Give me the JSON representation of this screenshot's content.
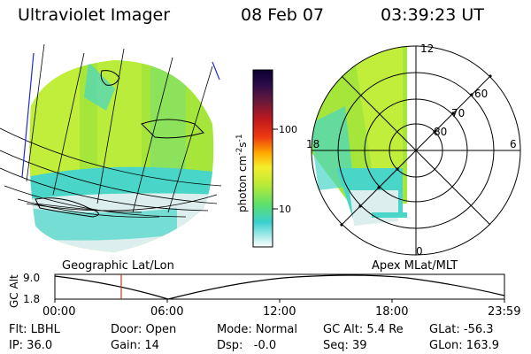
{
  "header": {
    "instrument": "Ultraviolet Imager",
    "date": "08 Feb 07",
    "time": "03:39:23 UT"
  },
  "colorbar": {
    "unit_label": "photon cm-2 s-1",
    "unit_main": "photon cm",
    "unit_sup_1": "-2",
    "unit_s": "s",
    "unit_sup_2": "-1",
    "tick_100": "100",
    "tick_10": "10"
  },
  "panels": {
    "left_label": "Geographic Lat/Lon",
    "right_label": "Apex MLat/MLT",
    "right_mlt": {
      "top": "12",
      "right": "6",
      "bottom": "0",
      "left": "18"
    },
    "right_lat": {
      "l60": "60",
      "l70": "70",
      "l80": "80"
    }
  },
  "timeline": {
    "ylabel": "GC Alt",
    "ytick_top": "9.0",
    "ytick_bottom": "1.8",
    "xticks": [
      "00:00",
      "06:00",
      "12:00",
      "18:00",
      "23:59"
    ]
  },
  "status": {
    "flt": "Flt: LBHL",
    "ip": "IP: 36.0",
    "door": "Door: Open",
    "gain": "Gain: 14",
    "mode": "Mode: Normal",
    "dsp": "Dsp:   -0.0",
    "gcalt": "GC Alt: 5.4 Re",
    "seq": "Seq: 39",
    "glat": "GLat: -56.3",
    "glon": "GLon: 163.9"
  },
  "colors": {
    "green": "#a6e63a",
    "yellow_green": "#c8f03c",
    "cyan": "#49d6c8",
    "pale": "#dcefee",
    "marker": "#c0392b"
  }
}
